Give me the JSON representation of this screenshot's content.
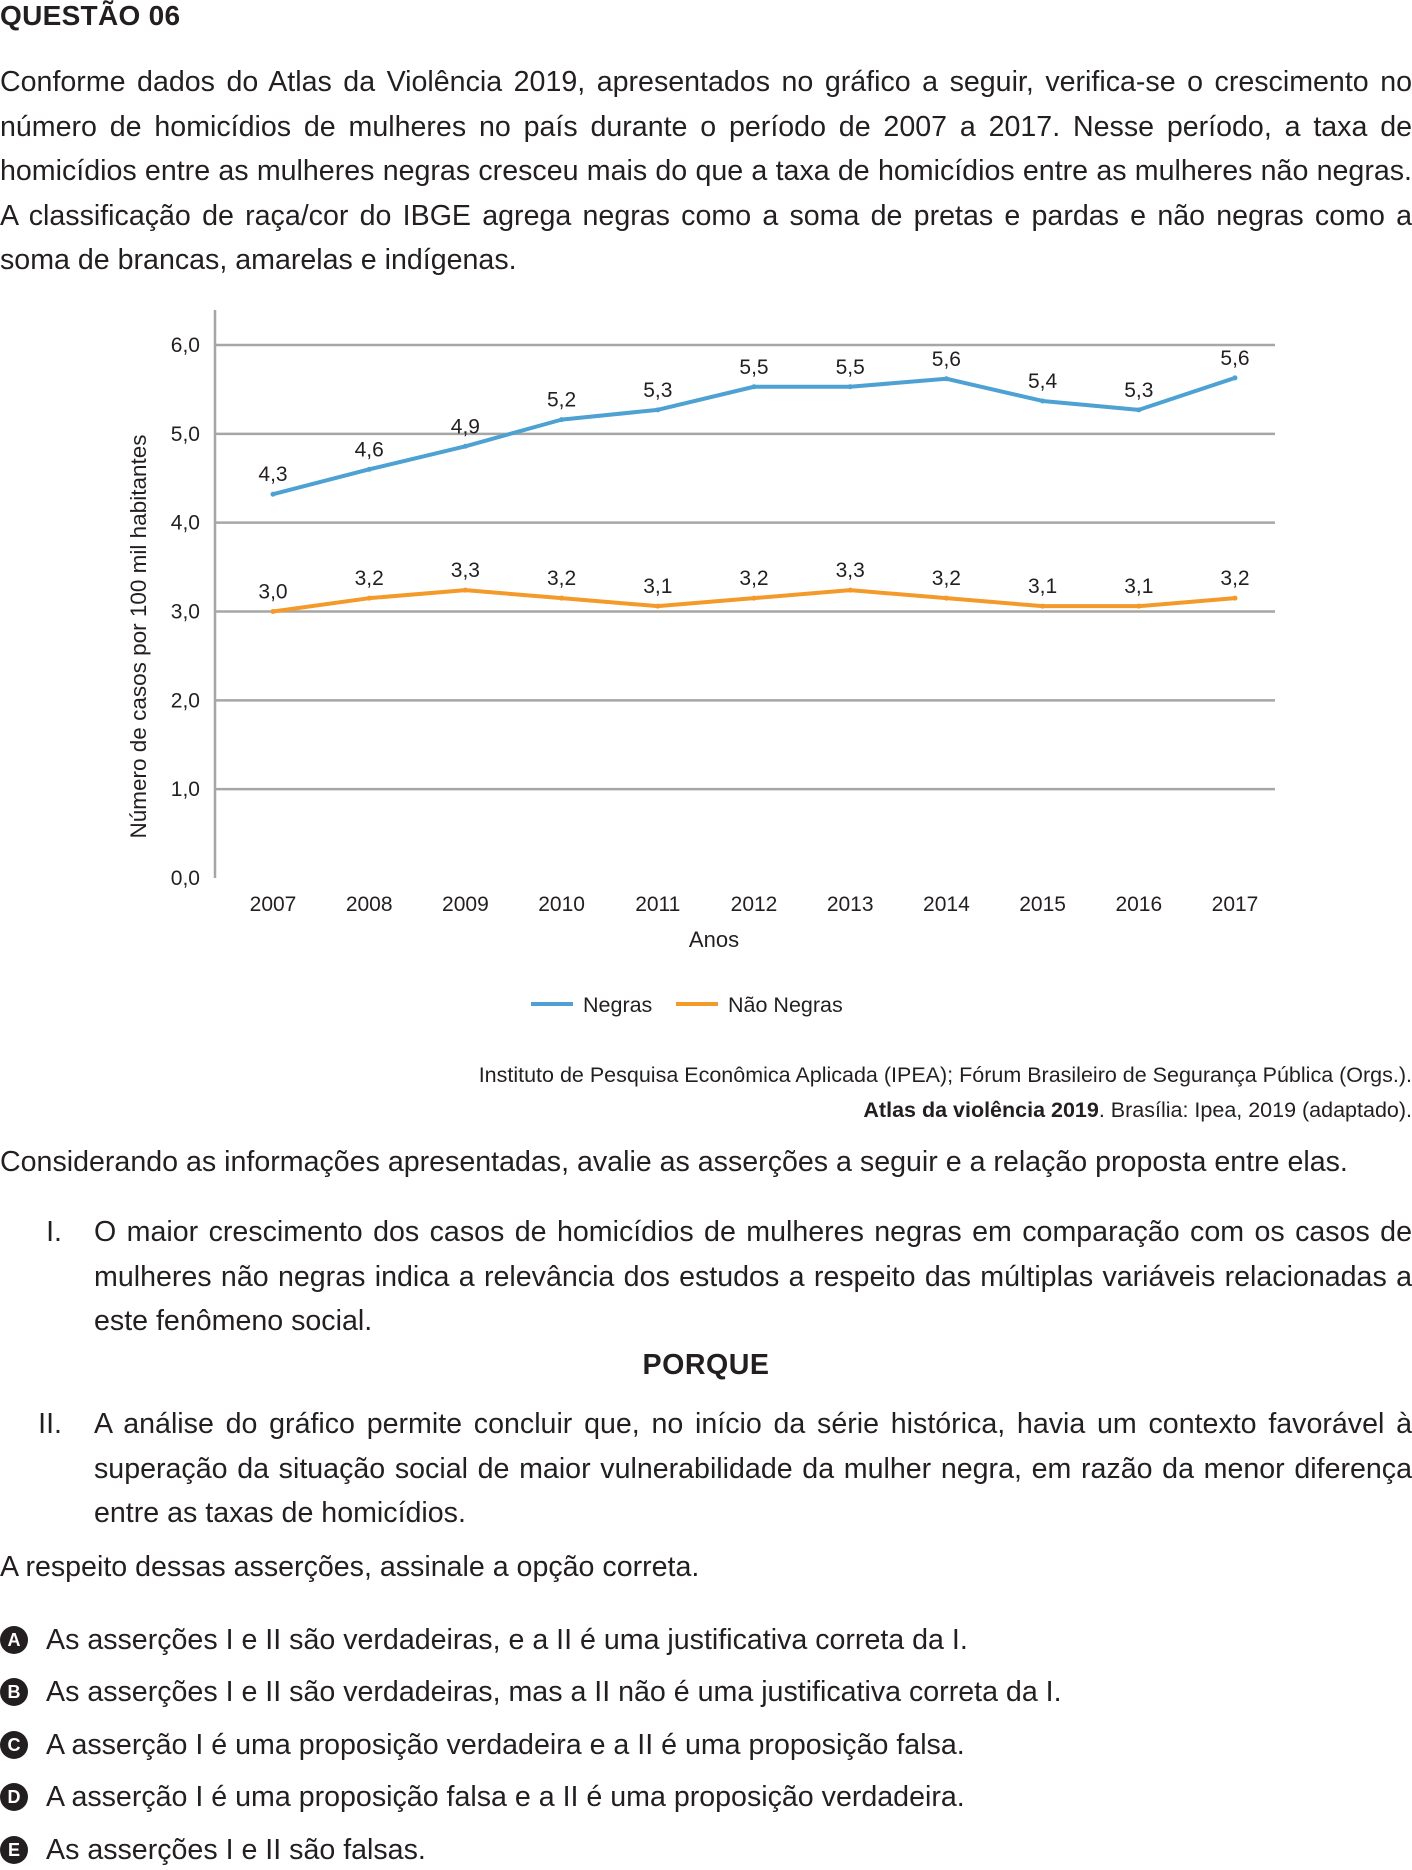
{
  "question": {
    "heading": "QUESTÃO 06",
    "intro": "Conforme dados do Atlas da Violência 2019, apresentados no gráfico a seguir, verifica-se o crescimento no número de homicídios de mulheres no país durante o período de 2007 a 2017. Nesse período, a taxa de homicídios entre as mulheres negras cresceu mais do que a taxa de homicídios entre as mulheres não negras. A classificação de raça/cor do IBGE agrega negras como a soma de pretas e pardas e não negras como a soma de brancas, amarelas e indígenas."
  },
  "chart_data": {
    "type": "line",
    "x": [
      "2007",
      "2008",
      "2009",
      "2010",
      "2011",
      "2012",
      "2013",
      "2014",
      "2015",
      "2016",
      "2017"
    ],
    "series": [
      {
        "name": "Negras",
        "color": "#4ea1d3",
        "values": [
          4.3,
          4.6,
          4.9,
          5.2,
          5.3,
          5.5,
          5.5,
          5.6,
          5.4,
          5.3,
          5.6
        ],
        "labels": [
          "4,3",
          "4,6",
          "4,9",
          "5,2",
          "5,3",
          "5,5",
          "5,5",
          "5,6",
          "5,4",
          "5,3",
          "5,6"
        ]
      },
      {
        "name": "Não Negras",
        "color": "#f39a2b",
        "values": [
          3.0,
          3.2,
          3.3,
          3.2,
          3.1,
          3.2,
          3.3,
          3.2,
          3.1,
          3.1,
          3.2
        ],
        "labels": [
          "3,0",
          "3,2",
          "3,3",
          "3,2",
          "3,1",
          "3,2",
          "3,3",
          "3,2",
          "3,1",
          "3,1",
          "3,2"
        ]
      }
    ],
    "plotted_values": {
      "Negras": [
        4.32,
        4.6,
        4.86,
        5.16,
        5.27,
        5.53,
        5.53,
        5.62,
        5.37,
        5.27,
        5.63
      ],
      "Não Negras": [
        3.0,
        3.15,
        3.24,
        3.15,
        3.06,
        3.15,
        3.24,
        3.15,
        3.06,
        3.06,
        3.15
      ]
    },
    "yticks": [
      "0,0",
      "1,0",
      "2,0",
      "3,0",
      "4,0",
      "5,0",
      "6,0"
    ],
    "ylim": [
      0,
      6
    ],
    "xlabel": "Anos",
    "ylabel": "Número de casos por 100 mil habitantes",
    "grid": true,
    "legend": "bottom-center",
    "gridColor": "#a6a6a6"
  },
  "source": {
    "line1": "Instituto de Pesquisa Econômica Aplicada (IPEA); Fórum Brasileiro de Segurança Pública (Orgs.).",
    "title": "Atlas da violência 2019",
    "rest": ". Brasília: Ipea, 2019 (adaptado)."
  },
  "consider": "Considerando as informações apresentadas, avalie as asserções a seguir e a relação proposta entre elas.",
  "assertions": [
    {
      "num": "I.",
      "text": "O maior crescimento dos casos de homicídios de mulheres negras em comparação com os casos de mulheres não negras indica a relevância dos estudos a respeito das múltiplas variáveis relacionadas a este fenômeno social."
    },
    {
      "num": "II.",
      "text": "A análise do gráfico permite concluir que, no início da série histórica, havia um contexto favorável à superação da situação social de maior vulnerabilidade da mulher negra, em razão da menor diferença entre as taxas de homicídios."
    }
  ],
  "porque": "PORQUE",
  "prompt": "A respeito dessas asserções, assinale a opção correta.",
  "options": [
    {
      "letter": "A",
      "text": "As asserções I e II são verdadeiras, e a II é uma justificativa correta da I."
    },
    {
      "letter": "B",
      "text": "As asserções I e II são verdadeiras, mas a II não é uma justificativa correta da I."
    },
    {
      "letter": "C",
      "text": "A asserção I é uma proposição verdadeira e a II é uma proposição falsa."
    },
    {
      "letter": "D",
      "text": "A asserção I é uma proposição falsa e a II é uma proposição verdadeira."
    },
    {
      "letter": "E",
      "text": "As asserções I e II são falsas."
    }
  ]
}
